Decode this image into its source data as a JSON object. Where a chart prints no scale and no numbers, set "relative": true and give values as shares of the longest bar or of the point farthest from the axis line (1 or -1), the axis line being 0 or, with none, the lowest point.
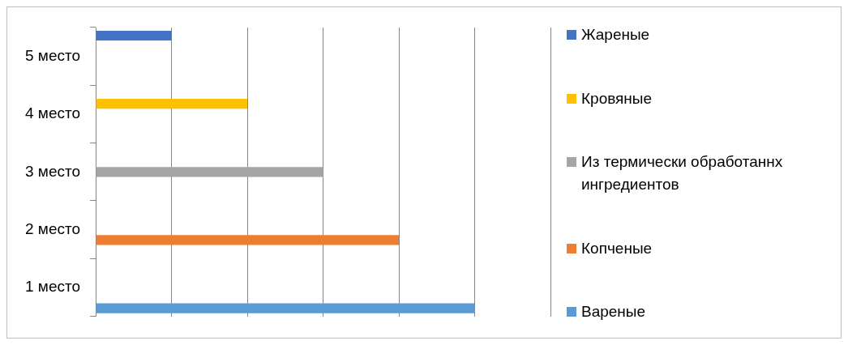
{
  "chart_data": {
    "type": "bar",
    "orientation": "horizontal",
    "relative": true,
    "grid": "x",
    "legend": "right",
    "categories": [
      "5 место",
      "4 место",
      "3 место",
      "2 место",
      "1 место"
    ],
    "series": [
      {
        "name": "Жареные",
        "color": "#4472c4",
        "values": [
          0.2,
          null,
          null,
          null,
          null
        ]
      },
      {
        "name": "Кровяные",
        "color": "#ffc000",
        "values": [
          null,
          0.4,
          null,
          null,
          null
        ]
      },
      {
        "name": "Из термически обработаннх ингредиентов",
        "color": "#a5a5a5",
        "values": [
          null,
          null,
          0.6,
          null,
          null
        ]
      },
      {
        "name": "Копченые",
        "color": "#ed7d31",
        "values": [
          null,
          null,
          null,
          0.8,
          null
        ]
      },
      {
        "name": "Вареные",
        "color": "#5b9bd5",
        "values": [
          null,
          null,
          null,
          null,
          1
        ]
      }
    ]
  }
}
